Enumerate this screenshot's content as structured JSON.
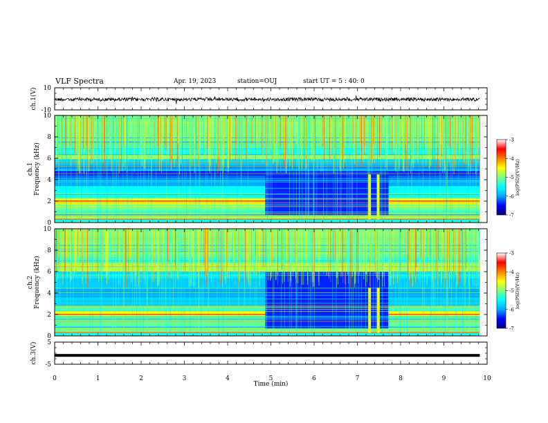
{
  "header": {
    "title": "VLF Spectra",
    "date": "Apr. 19, 2023",
    "station": "station=OUJ",
    "start": "start  UT =   5 : 40: 0"
  },
  "chart_data": [
    {
      "type": "line",
      "panel": "ch1-waveform",
      "ylabel": "ch.1(V)",
      "ylim": [
        -10,
        10
      ],
      "yticks": [
        10,
        -10
      ],
      "xlim": [
        0,
        10
      ],
      "x": [
        0,
        9.83
      ],
      "series": [
        {
          "values": [
            -0.5,
            -0.5
          ]
        }
      ]
    },
    {
      "type": "heatmap",
      "panel": "ch1-spectrogram",
      "ylabel": "ch.1\nFrequency (kHz)",
      "ylabel_lines": [
        "ch.1",
        "Frequency (kHz)"
      ],
      "ylim": [
        0,
        10
      ],
      "yticks": [
        0,
        2,
        4,
        6,
        8,
        10
      ],
      "xlim": [
        0,
        10
      ],
      "data_end": 9.83,
      "bands": [
        {
          "f0": 0,
          "f1": 0.3,
          "level": -5.5
        },
        {
          "f0": 0.3,
          "f1": 0.7,
          "level": -4.8
        },
        {
          "f0": 0.7,
          "f1": 1.2,
          "level": -5.2
        },
        {
          "f0": 1.2,
          "f1": 1.6,
          "level": -5.0
        },
        {
          "f0": 1.6,
          "f1": 2.0,
          "level": -4.6
        },
        {
          "f0": 2.0,
          "f1": 2.3,
          "level": -4.5
        },
        {
          "f0": 2.3,
          "f1": 2.8,
          "level": -5.4
        },
        {
          "f0": 2.8,
          "f1": 3.4,
          "level": -5.5
        },
        {
          "f0": 3.4,
          "f1": 4.0,
          "level": -6.0
        },
        {
          "f0": 4.0,
          "f1": 4.4,
          "level": -6.2
        },
        {
          "f0": 4.4,
          "f1": 4.8,
          "level": -6.5
        },
        {
          "f0": 4.8,
          "f1": 5.4,
          "level": -6.0
        },
        {
          "f0": 5.4,
          "f1": 5.9,
          "level": -5.8
        },
        {
          "f0": 5.9,
          "f1": 6.3,
          "level": -4.9
        },
        {
          "f0": 6.3,
          "f1": 7.0,
          "level": -5.4
        },
        {
          "f0": 7.0,
          "f1": 10.0,
          "level": -5.0
        }
      ],
      "quiet_interval": {
        "t0": 4.87,
        "t1": 7.72,
        "f0": 0.7,
        "f1": 4.8,
        "level": -6.4
      },
      "bursts": [
        7.25,
        7.45
      ]
    },
    {
      "type": "heatmap",
      "panel": "ch2-spectrogram",
      "ylabel": "ch.2\nFrequency (kHz)",
      "ylabel_lines": [
        "ch.2",
        "Frequency (kHz)"
      ],
      "ylim": [
        0,
        10
      ],
      "yticks": [
        0,
        2,
        4,
        6,
        8,
        10
      ],
      "xlim": [
        0,
        10
      ],
      "data_end": 9.83,
      "bands": [
        {
          "f0": 0,
          "f1": 0.3,
          "level": -5.5
        },
        {
          "f0": 0.3,
          "f1": 0.8,
          "level": -5.0
        },
        {
          "f0": 0.8,
          "f1": 1.4,
          "level": -5.1
        },
        {
          "f0": 1.4,
          "f1": 1.8,
          "level": -5.0
        },
        {
          "f0": 1.8,
          "f1": 2.3,
          "level": -4.5
        },
        {
          "f0": 2.3,
          "f1": 2.8,
          "level": -5.3
        },
        {
          "f0": 2.8,
          "f1": 3.6,
          "level": -5.8
        },
        {
          "f0": 3.6,
          "f1": 4.4,
          "level": -6.0
        },
        {
          "f0": 4.4,
          "f1": 5.4,
          "level": -5.8
        },
        {
          "f0": 5.4,
          "f1": 6.0,
          "level": -5.6
        },
        {
          "f0": 6.0,
          "f1": 6.8,
          "level": -4.8
        },
        {
          "f0": 6.8,
          "f1": 7.4,
          "level": -5.3
        },
        {
          "f0": 7.4,
          "f1": 10.0,
          "level": -5.0
        }
      ],
      "quiet_interval": {
        "t0": 4.87,
        "t1": 7.72,
        "f0": 0.7,
        "f1": 6.0,
        "level": -6.4
      },
      "bursts": [
        7.25,
        7.45
      ]
    },
    {
      "type": "line",
      "panel": "ch3-waveform",
      "ylabel": "ch.3(V)",
      "ylim": [
        -5,
        5
      ],
      "yticks": [
        5,
        -5
      ],
      "xlim": [
        0,
        10
      ],
      "xlabel": "Time  (min)",
      "xticks": [
        0,
        1,
        2,
        3,
        4,
        5,
        6,
        7,
        8,
        9,
        10
      ],
      "x": [
        0,
        9.83
      ],
      "series": [
        {
          "values": [
            -1.0,
            -1.0
          ]
        }
      ]
    }
  ],
  "colorbar": {
    "label": "log(PSD)(V²/Hz)",
    "range": [
      -7,
      -3
    ],
    "ticks": [
      -3,
      -4,
      -5,
      -6,
      -7
    ],
    "colors": [
      "#00007f",
      "#0000ff",
      "#00aaff",
      "#00ffff",
      "#7fff7f",
      "#ffff00",
      "#ff7f00",
      "#ff0000",
      "#ffffff"
    ]
  }
}
